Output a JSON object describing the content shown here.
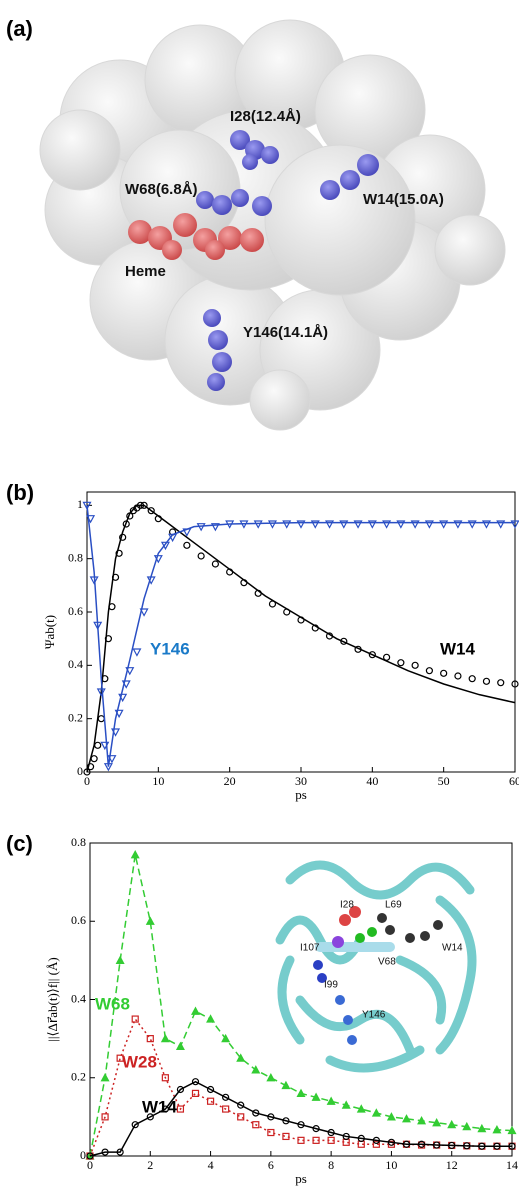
{
  "panel_a": {
    "label": "(a)",
    "labels": [
      "I28(12.4Å)",
      "W68(6.8Å)",
      "W14(15.0A)",
      "Heme",
      "Y146(14.1Å)"
    ]
  },
  "chart_data": [
    {
      "type": "line",
      "panel_label": "(b)",
      "x_label": "ps",
      "y_label": "Ψab(t)",
      "xlim": [
        0,
        60
      ],
      "xticks": [
        0,
        10,
        20,
        30,
        40,
        50,
        60
      ],
      "ylim": [
        0,
        1.05
      ],
      "yticks": [
        0,
        0.2,
        0.4,
        0.6,
        0.8,
        1
      ],
      "series": [
        {
          "name": "W14",
          "color": "#000000",
          "marker": "circle",
          "line_style": "none",
          "x": [
            0,
            0.5,
            1,
            1.5,
            2,
            2.5,
            3,
            3.5,
            4,
            4.5,
            5,
            5.5,
            6,
            6.5,
            7,
            7.5,
            8,
            9,
            10,
            12,
            14,
            16,
            18,
            20,
            22,
            24,
            26,
            28,
            30,
            32,
            34,
            36,
            38,
            40,
            42,
            44,
            46,
            48,
            50,
            52,
            54,
            56,
            58,
            60
          ],
          "values": [
            0,
            0.02,
            0.05,
            0.1,
            0.2,
            0.35,
            0.5,
            0.62,
            0.73,
            0.82,
            0.88,
            0.93,
            0.96,
            0.98,
            0.99,
            1,
            1,
            0.98,
            0.95,
            0.9,
            0.85,
            0.81,
            0.78,
            0.75,
            0.71,
            0.67,
            0.63,
            0.6,
            0.57,
            0.54,
            0.51,
            0.49,
            0.46,
            0.44,
            0.43,
            0.41,
            0.4,
            0.38,
            0.37,
            0.36,
            0.35,
            0.34,
            0.335,
            0.33
          ]
        },
        {
          "color": "#000000",
          "marker": "none",
          "line_style": "solid",
          "x": [
            0,
            1,
            2,
            3,
            4,
            5,
            6,
            7,
            8,
            10,
            15,
            20,
            25,
            30,
            35,
            40,
            45,
            50,
            55,
            60
          ],
          "values": [
            0,
            0.1,
            0.3,
            0.6,
            0.8,
            0.9,
            0.97,
            1,
            1,
            0.96,
            0.86,
            0.76,
            0.66,
            0.58,
            0.5,
            0.44,
            0.38,
            0.33,
            0.29,
            0.26
          ]
        },
        {
          "name": "Y146",
          "color": "#2a4fc4",
          "marker": "triangle",
          "line_style": "none",
          "x": [
            0,
            0.5,
            1,
            1.5,
            2,
            2.5,
            3,
            3.5,
            4,
            4.5,
            5,
            5.5,
            6,
            7,
            8,
            9,
            10,
            11,
            12,
            14,
            16,
            18,
            20,
            22,
            24,
            26,
            28,
            30,
            32,
            34,
            36,
            38,
            40,
            42,
            44,
            46,
            48,
            50,
            52,
            54,
            56,
            58,
            60
          ],
          "values": [
            1,
            0.95,
            0.72,
            0.55,
            0.3,
            0.1,
            0.02,
            0.05,
            0.15,
            0.22,
            0.28,
            0.33,
            0.38,
            0.45,
            0.6,
            0.72,
            0.8,
            0.85,
            0.88,
            0.9,
            0.92,
            0.92,
            0.93,
            0.93,
            0.93,
            0.93,
            0.93,
            0.93,
            0.93,
            0.93,
            0.93,
            0.93,
            0.93,
            0.93,
            0.93,
            0.93,
            0.93,
            0.93,
            0.93,
            0.93,
            0.93,
            0.93,
            0.93
          ]
        },
        {
          "color": "#2a4fc4",
          "marker": "none",
          "line_style": "solid",
          "x": [
            0,
            1,
            2,
            3,
            4,
            6,
            8,
            10,
            12,
            15,
            20,
            30,
            60
          ],
          "values": [
            1,
            0.75,
            0.35,
            0.02,
            0.2,
            0.42,
            0.65,
            0.82,
            0.89,
            0.92,
            0.93,
            0.935,
            0.935
          ]
        }
      ]
    },
    {
      "type": "line",
      "panel_label": "(c)",
      "x_label": "ps",
      "y_label": "||⟨Δr⃗ab(t)⟩f|| (Å)",
      "xlim": [
        0,
        14
      ],
      "xticks": [
        0,
        2,
        4,
        6,
        8,
        10,
        12,
        14
      ],
      "ylim": [
        0,
        0.8
      ],
      "yticks": [
        0,
        0.2,
        0.4,
        0.6,
        0.8
      ],
      "inset_labels": [
        "I28",
        "L69",
        "I107",
        "V68",
        "W14",
        "I99",
        "Y146"
      ],
      "series": [
        {
          "name": "W68",
          "color": "#33cc33",
          "marker": "triangle-up",
          "line_style": "dashed",
          "x": [
            0,
            0.5,
            1,
            1.5,
            2,
            2.5,
            3,
            3.5,
            4,
            4.5,
            5,
            5.5,
            6,
            6.5,
            7,
            7.5,
            8,
            8.5,
            9,
            9.5,
            10,
            10.5,
            11,
            11.5,
            12,
            12.5,
            13,
            13.5,
            14
          ],
          "values": [
            0,
            0.2,
            0.5,
            0.77,
            0.6,
            0.3,
            0.28,
            0.37,
            0.35,
            0.3,
            0.25,
            0.22,
            0.2,
            0.18,
            0.16,
            0.15,
            0.14,
            0.13,
            0.12,
            0.11,
            0.1,
            0.095,
            0.09,
            0.085,
            0.08,
            0.075,
            0.07,
            0.067,
            0.065
          ]
        },
        {
          "name": "W28",
          "color": "#cc2222",
          "marker": "square",
          "line_style": "dotted",
          "x": [
            0,
            0.5,
            1,
            1.5,
            2,
            2.5,
            3,
            3.5,
            4,
            4.5,
            5,
            5.5,
            6,
            6.5,
            7,
            7.5,
            8,
            8.5,
            9,
            9.5,
            10,
            10.5,
            11,
            11.5,
            12,
            12.5,
            13,
            13.5,
            14
          ],
          "values": [
            0,
            0.1,
            0.25,
            0.35,
            0.3,
            0.2,
            0.12,
            0.16,
            0.14,
            0.12,
            0.1,
            0.08,
            0.06,
            0.05,
            0.04,
            0.04,
            0.04,
            0.035,
            0.03,
            0.03,
            0.03,
            0.03,
            0.028,
            0.028,
            0.027,
            0.026,
            0.025,
            0.025,
            0.025
          ]
        },
        {
          "name": "W14",
          "color": "#000000",
          "marker": "circle",
          "line_style": "solid",
          "x": [
            0,
            0.5,
            1,
            1.5,
            2,
            2.5,
            3,
            3.5,
            4,
            4.5,
            5,
            5.5,
            6,
            6.5,
            7,
            7.5,
            8,
            8.5,
            9,
            9.5,
            10,
            10.5,
            11,
            11.5,
            12,
            12.5,
            13,
            13.5,
            14
          ],
          "values": [
            0,
            0.01,
            0.01,
            0.08,
            0.1,
            0.12,
            0.17,
            0.19,
            0.17,
            0.15,
            0.13,
            0.11,
            0.1,
            0.09,
            0.08,
            0.07,
            0.06,
            0.05,
            0.045,
            0.04,
            0.035,
            0.03,
            0.03,
            0.028,
            0.027,
            0.026,
            0.025,
            0.025,
            0.025
          ]
        }
      ]
    }
  ]
}
